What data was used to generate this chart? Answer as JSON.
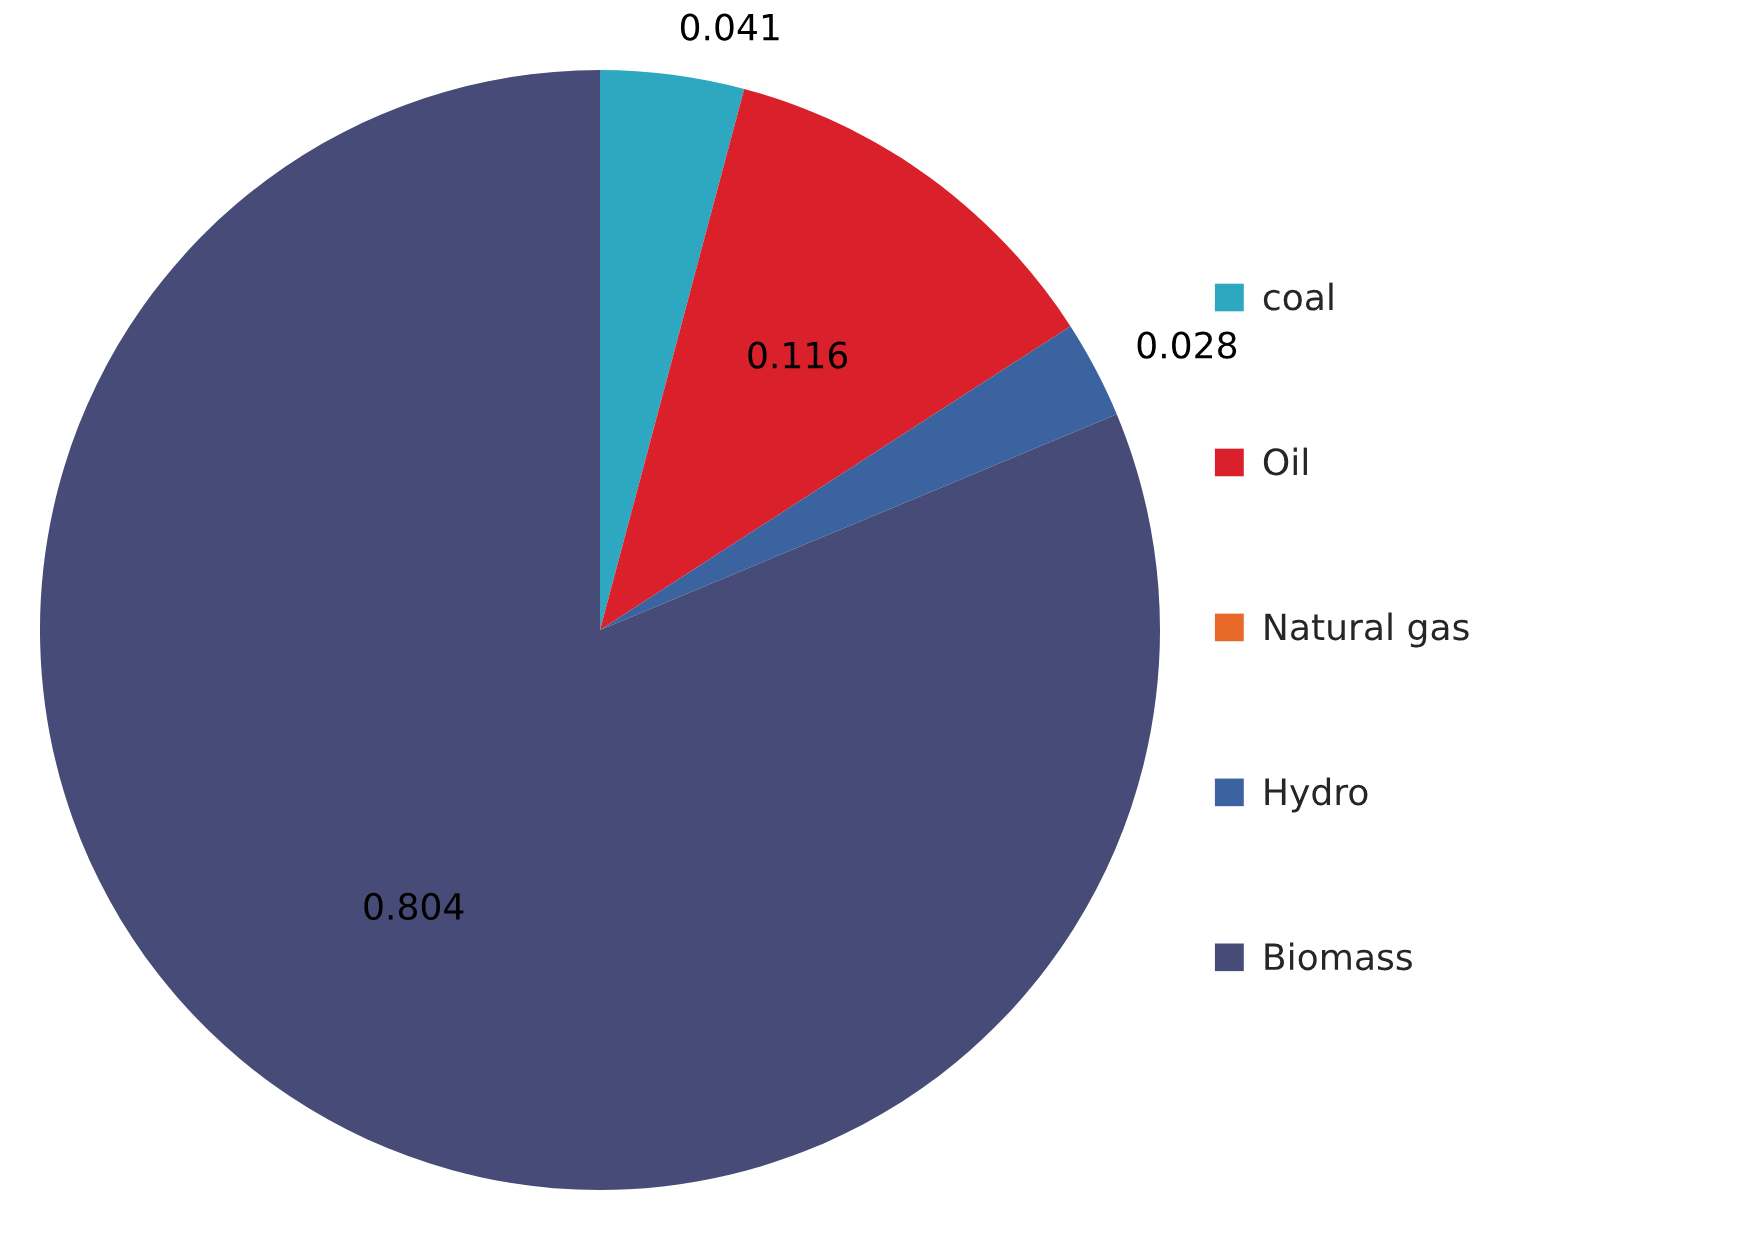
{
  "chart_data": {
    "type": "pie",
    "categories": [
      "coal",
      "Oil",
      "Natural gas",
      "Hydro",
      "Biomass"
    ],
    "values": [
      0.041,
      0.116,
      0,
      0.028,
      0.804
    ],
    "colors": [
      "#2ea7c1",
      "#d9202b",
      "#e8682a",
      "#3a63a0",
      "#474b77"
    ],
    "value_labels": [
      "0.041",
      "0.116",
      null,
      "0.028",
      "0.804"
    ],
    "legend": "right"
  }
}
